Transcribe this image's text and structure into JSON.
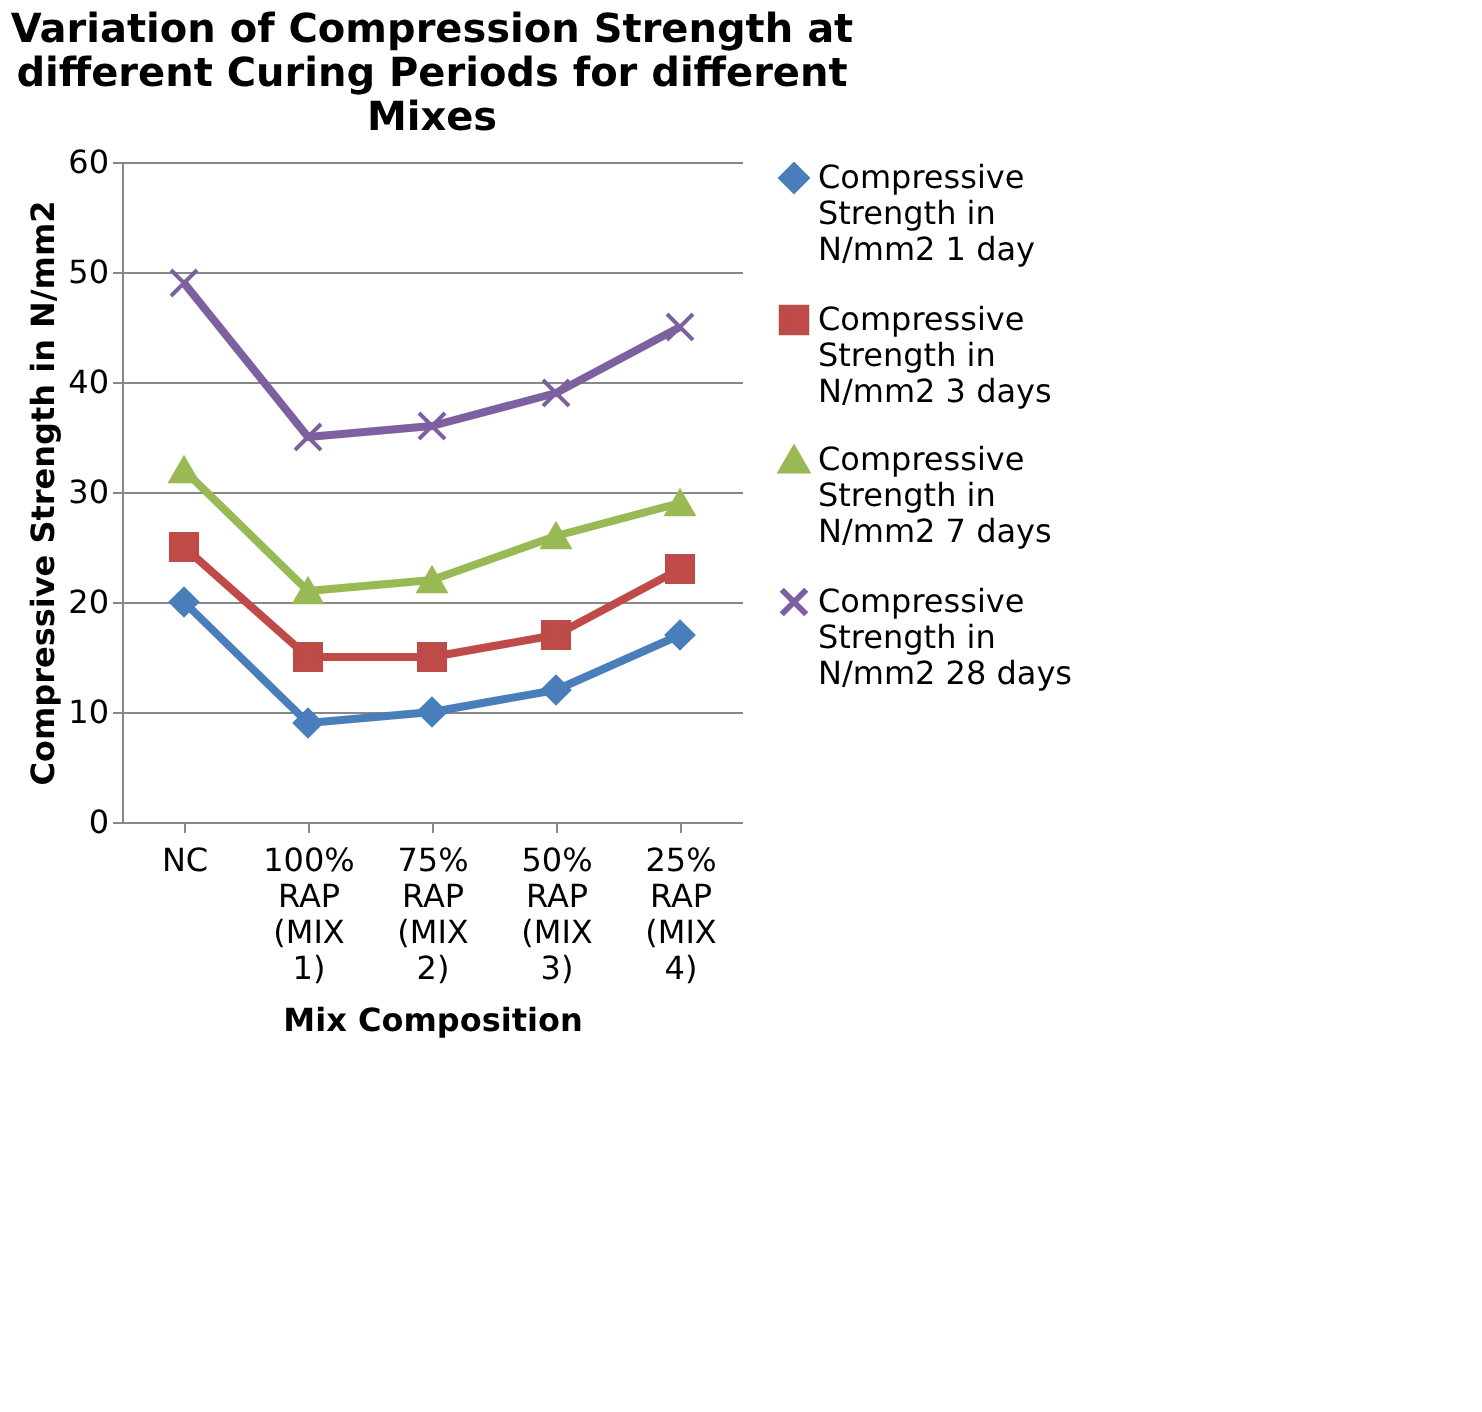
{
  "chart_data": {
    "type": "line",
    "title": "Variation of Compression Strength at different Curing Periods for different Mixes",
    "xlabel": "Mix Composition",
    "ylabel": "Compressive Strength in N/mm2",
    "categories": [
      "NC",
      "100% RAP (MIX 1)",
      "75% RAP (MIX 2)",
      "50% RAP (MIX 3)",
      "25% RAP (MIX 4)"
    ],
    "series": [
      {
        "name": "Compressive Strength in N/mm2 1 day",
        "color": "#4a7ebb",
        "marker": "diamond",
        "values": [
          20,
          9,
          10,
          12,
          17
        ]
      },
      {
        "name": "Compressive Strength in N/mm2 3 days",
        "color": "#be4b48",
        "marker": "square",
        "values": [
          25,
          15,
          15,
          17,
          23
        ]
      },
      {
        "name": "Compressive Strength in N/mm2 7 days",
        "color": "#98b954",
        "marker": "triangle",
        "values": [
          32,
          21,
          22,
          26,
          29
        ]
      },
      {
        "name": "Compressive Strength in N/mm2 28 days",
        "color": "#7d60a0",
        "marker": "cross",
        "values": [
          49,
          35,
          36,
          39,
          45
        ]
      }
    ],
    "ylim": [
      0,
      60
    ],
    "yticks": [
      0,
      10,
      20,
      30,
      40,
      50,
      60
    ],
    "grid": "y",
    "legend": "right",
    "line_style": "solid"
  }
}
